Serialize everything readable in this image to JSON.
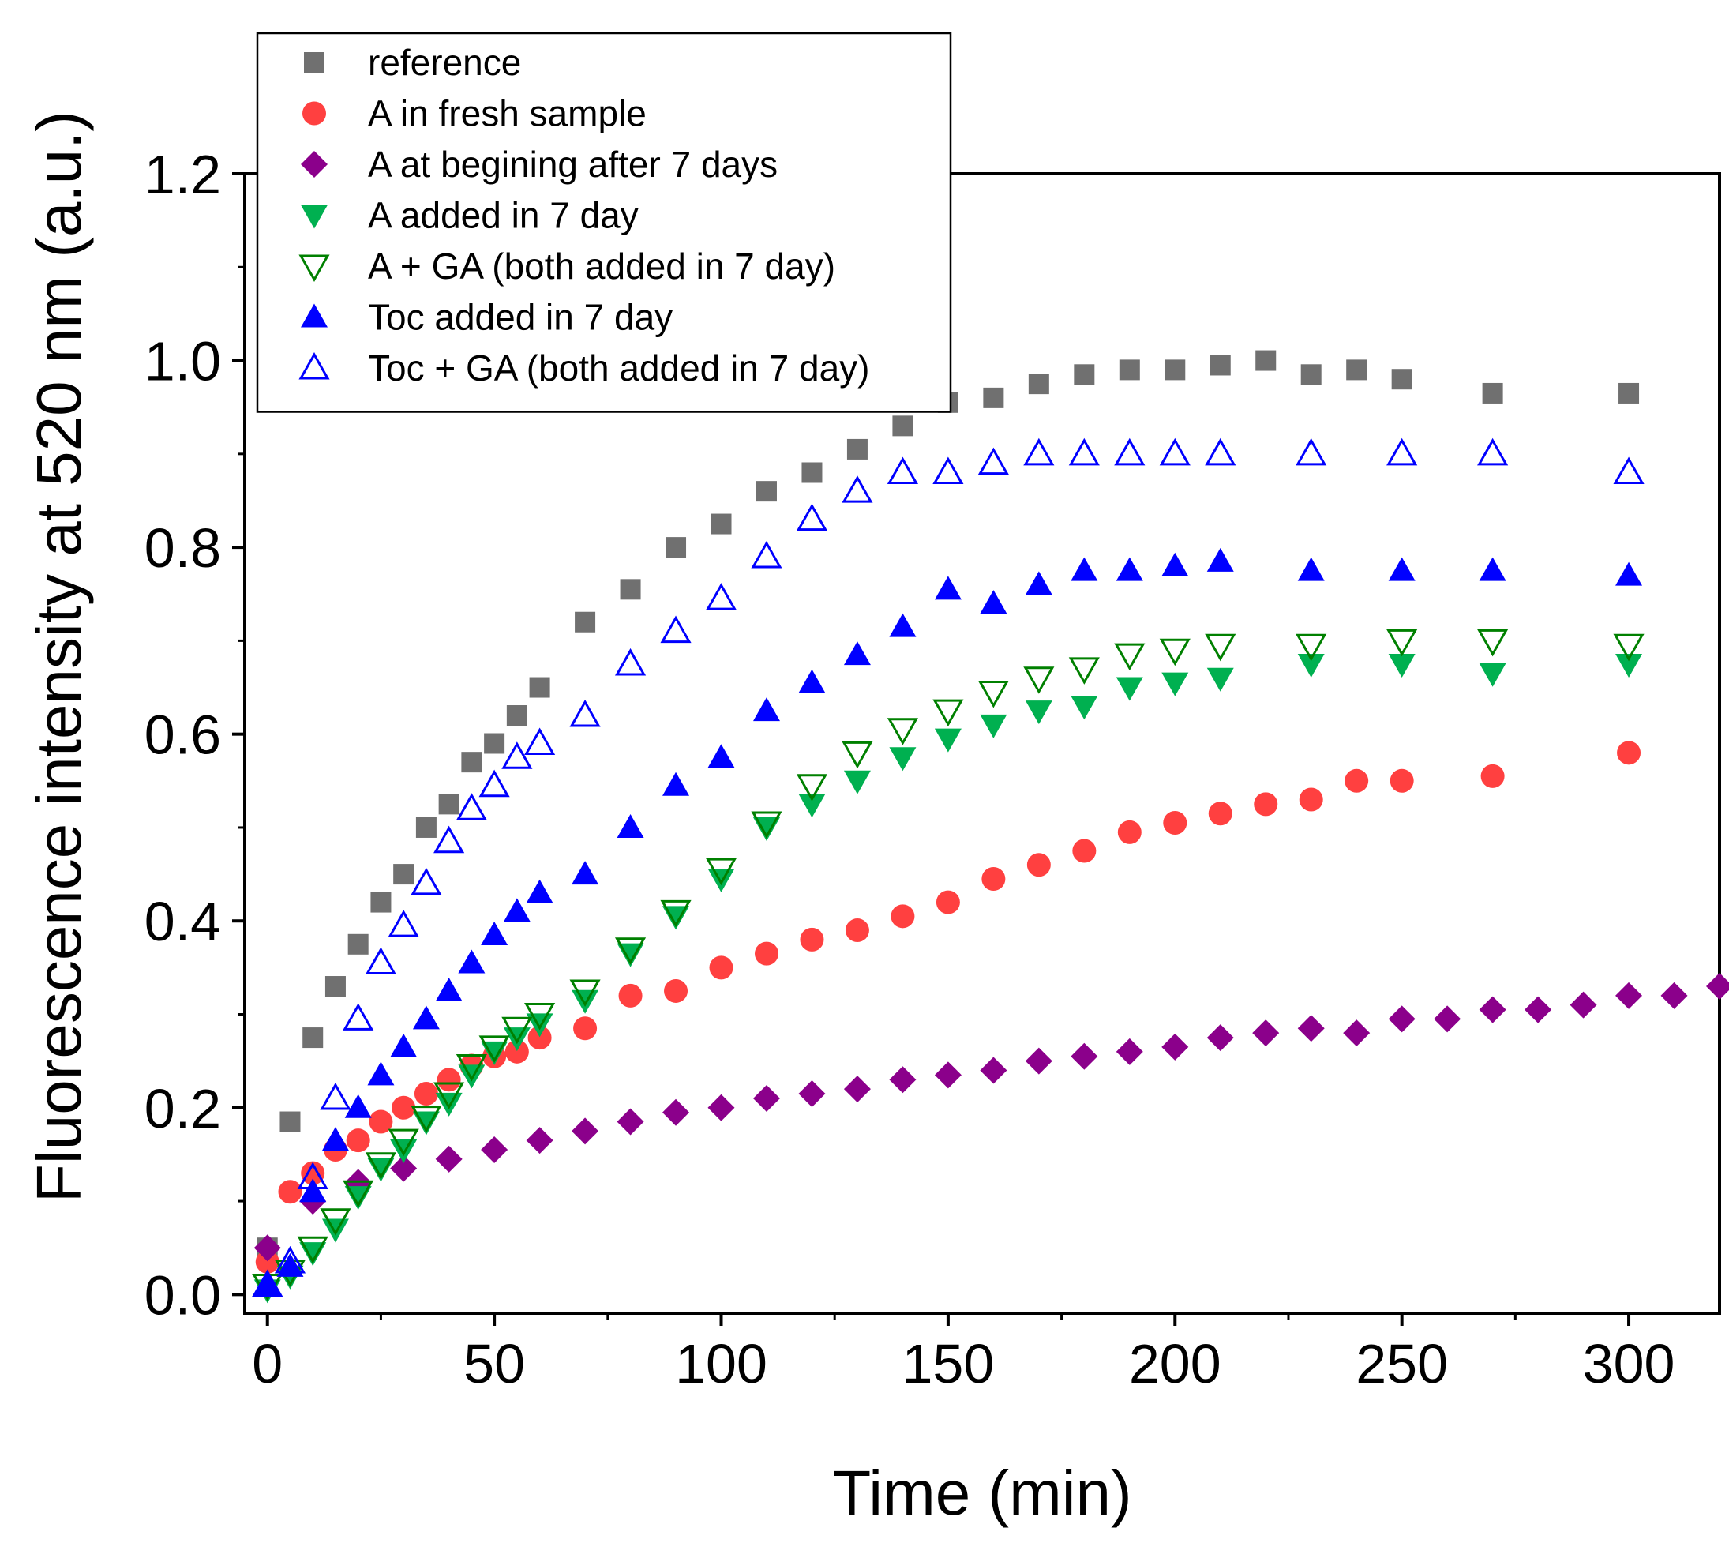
{
  "chart_data": {
    "type": "scatter",
    "title": "",
    "xlabel": "Time (min)",
    "ylabel": "Fluorescence intensity at 520 nm (a.u.)",
    "xlim": [
      -5,
      320
    ],
    "ylim": [
      -0.02,
      1.2
    ],
    "xticks": [
      0,
      50,
      100,
      150,
      200,
      250,
      300
    ],
    "xtick_labels": [
      "0",
      "50",
      "100",
      "150",
      "200",
      "250",
      "300"
    ],
    "yticks": [
      0.0,
      0.2,
      0.4,
      0.6,
      0.8,
      1.0,
      1.2
    ],
    "ytick_labels": [
      "0.0",
      "0.2",
      "0.4",
      "0.6",
      "0.8",
      "1.0",
      "1.2"
    ],
    "x_minor_step": 25,
    "y_minor_step": 0.1,
    "grid": false,
    "legend_position": "top-left",
    "series": [
      {
        "name": "reference",
        "marker": "square",
        "color": "#707070",
        "filled": true,
        "x": [
          0,
          5,
          10,
          15,
          20,
          25,
          30,
          35,
          40,
          45,
          50,
          55,
          60,
          70,
          80,
          90,
          100,
          110,
          120,
          130,
          140,
          150,
          160,
          170,
          180,
          190,
          200,
          210,
          220,
          230,
          240,
          250,
          270,
          300
        ],
        "y": [
          0.05,
          0.185,
          0.275,
          0.33,
          0.375,
          0.42,
          0.45,
          0.5,
          0.525,
          0.57,
          0.59,
          0.62,
          0.65,
          0.72,
          0.755,
          0.8,
          0.825,
          0.86,
          0.88,
          0.905,
          0.93,
          0.955,
          0.96,
          0.975,
          0.985,
          0.99,
          0.99,
          0.995,
          1.0,
          0.985,
          0.99,
          0.98,
          0.965,
          0.965
        ]
      },
      {
        "name": "A in fresh sample",
        "marker": "circle",
        "color": "#ff4040",
        "filled": true,
        "x": [
          0,
          5,
          10,
          15,
          20,
          25,
          30,
          35,
          40,
          45,
          50,
          55,
          60,
          70,
          80,
          90,
          100,
          110,
          120,
          130,
          140,
          150,
          160,
          170,
          180,
          190,
          200,
          210,
          220,
          230,
          240,
          250,
          270,
          300
        ],
        "y": [
          0.035,
          0.11,
          0.13,
          0.155,
          0.165,
          0.185,
          0.2,
          0.215,
          0.23,
          0.245,
          0.255,
          0.26,
          0.275,
          0.285,
          0.32,
          0.325,
          0.35,
          0.365,
          0.38,
          0.39,
          0.405,
          0.42,
          0.445,
          0.46,
          0.475,
          0.495,
          0.505,
          0.515,
          0.525,
          0.53,
          0.55,
          0.55,
          0.555,
          0.58
        ]
      },
      {
        "name": "A at begining after 7 days",
        "marker": "diamond",
        "color": "#8b008b",
        "filled": true,
        "x": [
          0,
          10,
          20,
          30,
          40,
          50,
          60,
          70,
          80,
          90,
          100,
          110,
          120,
          130,
          140,
          150,
          160,
          170,
          180,
          190,
          200,
          210,
          220,
          230,
          240,
          250,
          260,
          270,
          280,
          290,
          300,
          310,
          320
        ],
        "y": [
          0.05,
          0.1,
          0.12,
          0.135,
          0.145,
          0.155,
          0.165,
          0.175,
          0.185,
          0.195,
          0.2,
          0.21,
          0.215,
          0.22,
          0.23,
          0.235,
          0.24,
          0.25,
          0.255,
          0.26,
          0.265,
          0.275,
          0.28,
          0.285,
          0.28,
          0.295,
          0.295,
          0.305,
          0.305,
          0.31,
          0.32,
          0.32,
          0.33
        ]
      },
      {
        "name": "A added in 7 day",
        "marker": "triangle-down",
        "color": "#00b050",
        "filled": true,
        "x": [
          0,
          5,
          10,
          15,
          20,
          25,
          30,
          35,
          40,
          45,
          50,
          55,
          60,
          70,
          80,
          90,
          100,
          110,
          120,
          130,
          140,
          150,
          160,
          170,
          180,
          190,
          200,
          210,
          230,
          250,
          270,
          300
        ],
        "y": [
          0.005,
          0.02,
          0.045,
          0.07,
          0.105,
          0.135,
          0.155,
          0.185,
          0.205,
          0.235,
          0.26,
          0.275,
          0.29,
          0.315,
          0.365,
          0.405,
          0.445,
          0.5,
          0.525,
          0.55,
          0.575,
          0.595,
          0.61,
          0.625,
          0.63,
          0.65,
          0.655,
          0.66,
          0.675,
          0.675,
          0.665,
          0.675
        ]
      },
      {
        "name": "A + GA (both added in 7 day)",
        "marker": "triangle-down",
        "color": "#008000",
        "filled": false,
        "x": [
          0,
          5,
          10,
          15,
          20,
          25,
          30,
          35,
          40,
          45,
          50,
          55,
          60,
          70,
          80,
          90,
          100,
          110,
          120,
          130,
          140,
          150,
          160,
          170,
          180,
          190,
          200,
          210,
          230,
          250,
          270,
          300
        ],
        "y": [
          0.01,
          0.025,
          0.05,
          0.08,
          0.11,
          0.14,
          0.165,
          0.19,
          0.215,
          0.245,
          0.265,
          0.285,
          0.3,
          0.325,
          0.37,
          0.41,
          0.455,
          0.505,
          0.545,
          0.58,
          0.605,
          0.625,
          0.645,
          0.66,
          0.67,
          0.685,
          0.69,
          0.695,
          0.695,
          0.7,
          0.7,
          0.695
        ]
      },
      {
        "name": "Toc added in 7 day",
        "marker": "triangle-up",
        "color": "#0000ff",
        "filled": true,
        "x": [
          0,
          5,
          10,
          15,
          20,
          25,
          30,
          35,
          40,
          45,
          50,
          55,
          60,
          70,
          80,
          90,
          100,
          110,
          120,
          130,
          140,
          150,
          160,
          170,
          180,
          190,
          200,
          210,
          230,
          250,
          270,
          300
        ],
        "y": [
          0.01,
          0.03,
          0.11,
          0.165,
          0.2,
          0.235,
          0.265,
          0.295,
          0.325,
          0.355,
          0.385,
          0.41,
          0.43,
          0.45,
          0.5,
          0.545,
          0.575,
          0.625,
          0.655,
          0.685,
          0.715,
          0.755,
          0.74,
          0.76,
          0.775,
          0.775,
          0.78,
          0.785,
          0.775,
          0.775,
          0.775,
          0.77
        ]
      },
      {
        "name": "Toc + GA (both added in 7 day)",
        "marker": "triangle-up",
        "color": "#0000ff",
        "filled": false,
        "x": [
          0,
          5,
          10,
          15,
          20,
          25,
          30,
          35,
          40,
          45,
          50,
          55,
          60,
          70,
          80,
          90,
          100,
          110,
          120,
          130,
          140,
          150,
          160,
          170,
          180,
          190,
          200,
          210,
          230,
          250,
          270,
          300
        ],
        "y": [
          0.01,
          0.035,
          0.125,
          0.21,
          0.295,
          0.355,
          0.395,
          0.44,
          0.485,
          0.52,
          0.545,
          0.575,
          0.59,
          0.62,
          0.675,
          0.71,
          0.745,
          0.79,
          0.83,
          0.86,
          0.88,
          0.88,
          0.89,
          0.9,
          0.9,
          0.9,
          0.9,
          0.9,
          0.9,
          0.9,
          0.9,
          0.88
        ]
      }
    ]
  }
}
